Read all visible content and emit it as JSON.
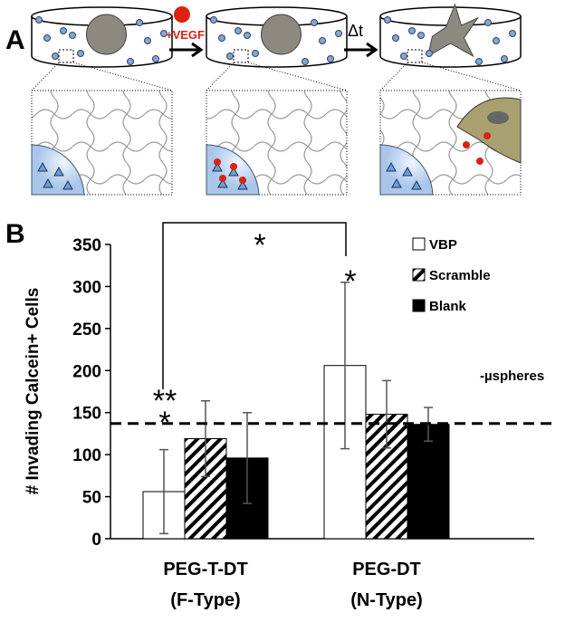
{
  "panel_a": {
    "label": "A",
    "stimulus": "+VEGF",
    "time_step": "Δt"
  },
  "chart_data": {
    "type": "bar",
    "panel_label": "B",
    "ylabel": "# Invading Calcein+ Cells",
    "categories": [
      "PEG-T-DT\n(F-Type)",
      "PEG-DT\n(N-Type)"
    ],
    "series": [
      {
        "name": "VBP",
        "color": "#ffffff",
        "values": [
          56,
          206
        ],
        "errors": [
          50,
          99
        ]
      },
      {
        "name": "Scramble",
        "color": "#000000",
        "hatch": true,
        "values": [
          119,
          148
        ],
        "errors": [
          45,
          40
        ]
      },
      {
        "name": "Blank",
        "color": "#000000",
        "values": [
          96,
          136
        ],
        "errors": [
          54,
          20
        ]
      }
    ],
    "ylim": [
      0,
      350
    ],
    "yticks": [
      0,
      50,
      100,
      150,
      200,
      250,
      300,
      350
    ],
    "ref_line": {
      "value": 137,
      "label": "-µspheres"
    },
    "annotations": [
      "*",
      "*",
      "**",
      "*"
    ]
  }
}
